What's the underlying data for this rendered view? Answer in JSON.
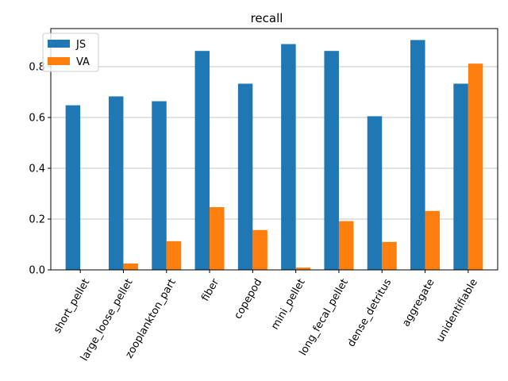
{
  "chart_data": {
    "type": "bar",
    "title": "recall",
    "xlabel": "",
    "ylabel": "",
    "categories": [
      "short_pellet",
      "large_loose_pellet",
      "zooplankton_part",
      "fiber",
      "copepod",
      "mini_pellet",
      "long_fecal_pellet",
      "dense_detritus",
      "aggregate",
      "unidentifiable"
    ],
    "series": [
      {
        "name": "JS",
        "color": "#1f77b4",
        "values": [
          0.648,
          0.683,
          0.664,
          0.862,
          0.733,
          0.889,
          0.862,
          0.605,
          0.905,
          0.733
        ]
      },
      {
        "name": "VA",
        "color": "#ff7f0e",
        "values": [
          0.0,
          0.025,
          0.113,
          0.247,
          0.157,
          0.009,
          0.192,
          0.11,
          0.232,
          0.812
        ]
      }
    ],
    "ylim": [
      0,
      0.95
    ],
    "yticks": [
      0.0,
      0.2,
      0.4,
      0.6,
      0.8
    ],
    "ytick_labels": [
      "0.0",
      "0.2",
      "0.4",
      "0.6",
      "0.8"
    ],
    "grid": "horizontal",
    "legend_position": "top-left"
  }
}
